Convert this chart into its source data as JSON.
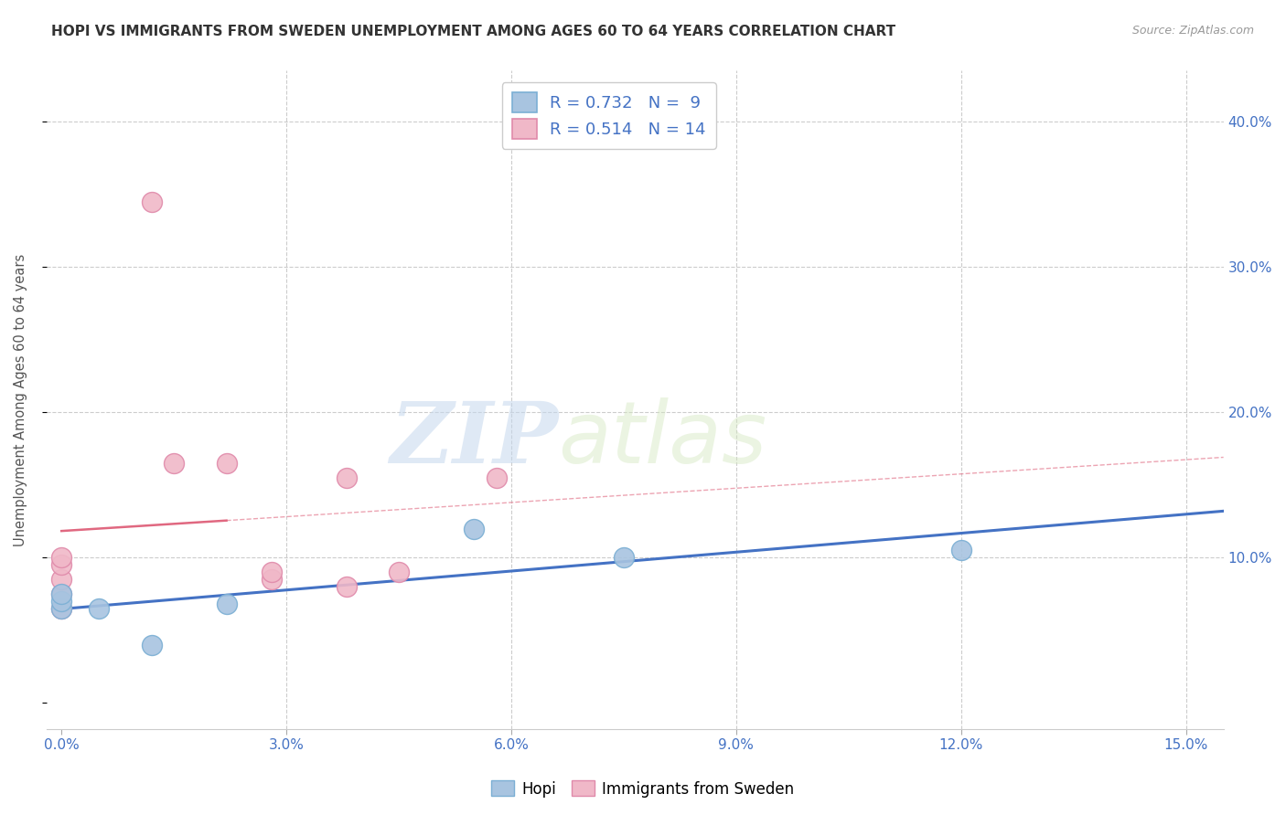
{
  "title": "HOPI VS IMMIGRANTS FROM SWEDEN UNEMPLOYMENT AMONG AGES 60 TO 64 YEARS CORRELATION CHART",
  "source": "Source: ZipAtlas.com",
  "ylabel": "Unemployment Among Ages 60 to 64 years",
  "xlim": [
    -0.002,
    0.155
  ],
  "ylim": [
    -0.018,
    0.435
  ],
  "xticks": [
    0.0,
    0.03,
    0.06,
    0.09,
    0.12,
    0.15
  ],
  "yticks": [
    0.0,
    0.1,
    0.2,
    0.3,
    0.4
  ],
  "hopi_x": [
    0.0,
    0.0,
    0.0,
    0.005,
    0.012,
    0.022,
    0.055,
    0.075,
    0.12
  ],
  "hopi_y": [
    0.065,
    0.07,
    0.075,
    0.065,
    0.04,
    0.068,
    0.12,
    0.1,
    0.105
  ],
  "sweden_x": [
    0.0,
    0.0,
    0.0,
    0.0,
    0.0,
    0.012,
    0.015,
    0.022,
    0.028,
    0.028,
    0.038,
    0.038,
    0.045,
    0.058
  ],
  "sweden_y": [
    0.065,
    0.075,
    0.085,
    0.095,
    0.1,
    0.345,
    0.165,
    0.165,
    0.085,
    0.09,
    0.155,
    0.08,
    0.09,
    0.155
  ],
  "hopi_color": "#a8c4e0",
  "hopi_edge": "#7bafd4",
  "sweden_color": "#f0b8c8",
  "sweden_edge": "#e08aaa",
  "hopi_line_color": "#4472c4",
  "sweden_line_color": "#e06880",
  "hopi_R": 0.732,
  "hopi_N": 9,
  "sweden_R": 0.514,
  "sweden_N": 14,
  "watermark_zip": "ZIP",
  "watermark_atlas": "atlas",
  "background_color": "#ffffff",
  "grid_color": "#cccccc",
  "title_fontsize": 11,
  "axis_label_color": "#4472c4",
  "legend_label_color": "#4472c4"
}
